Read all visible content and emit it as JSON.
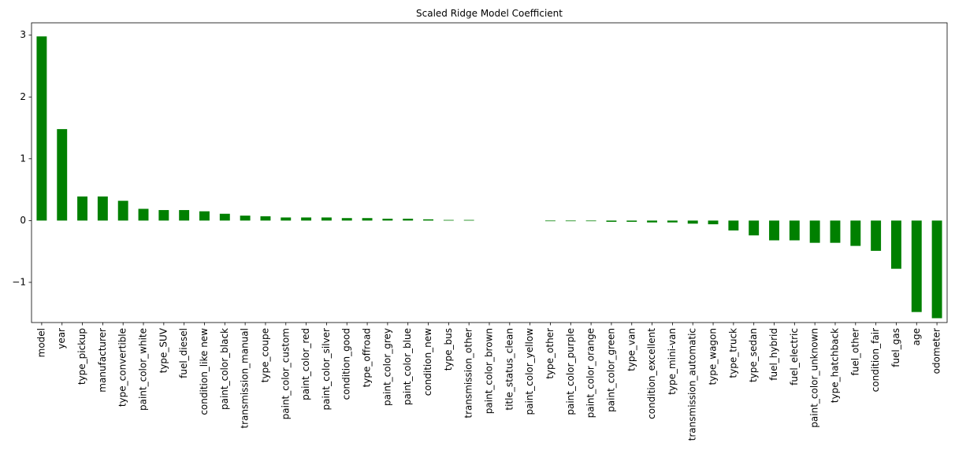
{
  "chart_data": {
    "type": "bar",
    "title": "Scaled Ridge Model Coefficient",
    "xlabel": "",
    "ylabel": "",
    "ylim": [
      -1.65,
      3.2
    ],
    "yticks": [
      3,
      2,
      1,
      0,
      -1
    ],
    "ytick_labels": [
      "3",
      "2",
      "1",
      "0",
      "−1"
    ],
    "bar_color": "#008000",
    "grid": false,
    "categories": [
      "model",
      "year",
      "type_pickup",
      "manufacturer",
      "type_convertible",
      "paint_color_white",
      "type_SUV",
      "fuel_diesel",
      "condition_like new",
      "paint_color_black",
      "transmission_manual",
      "type_coupe",
      "paint_color_custom",
      "paint_color_red",
      "paint_color_silver",
      "condition_good",
      "type_offroad",
      "paint_color_grey",
      "paint_color_blue",
      "condition_new",
      "type_bus",
      "transmission_other",
      "paint_color_brown",
      "title_status_clean",
      "paint_color_yellow",
      "type_other",
      "paint_color_purple",
      "paint_color_orange",
      "paint_color_green",
      "type_van",
      "condition_excellent",
      "type_mini-van",
      "transmission_automatic",
      "type_wagon",
      "type_truck",
      "type_sedan",
      "fuel_hybrid",
      "fuel_electric",
      "paint_color_unknown",
      "type_hatchback",
      "fuel_other",
      "condition_fair",
      "fuel_gas",
      "age",
      "odometer"
    ],
    "values": [
      2.98,
      1.48,
      0.39,
      0.39,
      0.32,
      0.19,
      0.17,
      0.17,
      0.15,
      0.11,
      0.08,
      0.07,
      0.05,
      0.05,
      0.05,
      0.04,
      0.04,
      0.03,
      0.03,
      0.02,
      0.01,
      0.01,
      0.0,
      0.0,
      0.0,
      -0.01,
      -0.01,
      -0.01,
      -0.02,
      -0.02,
      -0.03,
      -0.03,
      -0.05,
      -0.06,
      -0.16,
      -0.24,
      -0.32,
      -0.32,
      -0.36,
      -0.36,
      -0.41,
      -0.49,
      -0.78,
      -1.48,
      -1.58
    ]
  }
}
